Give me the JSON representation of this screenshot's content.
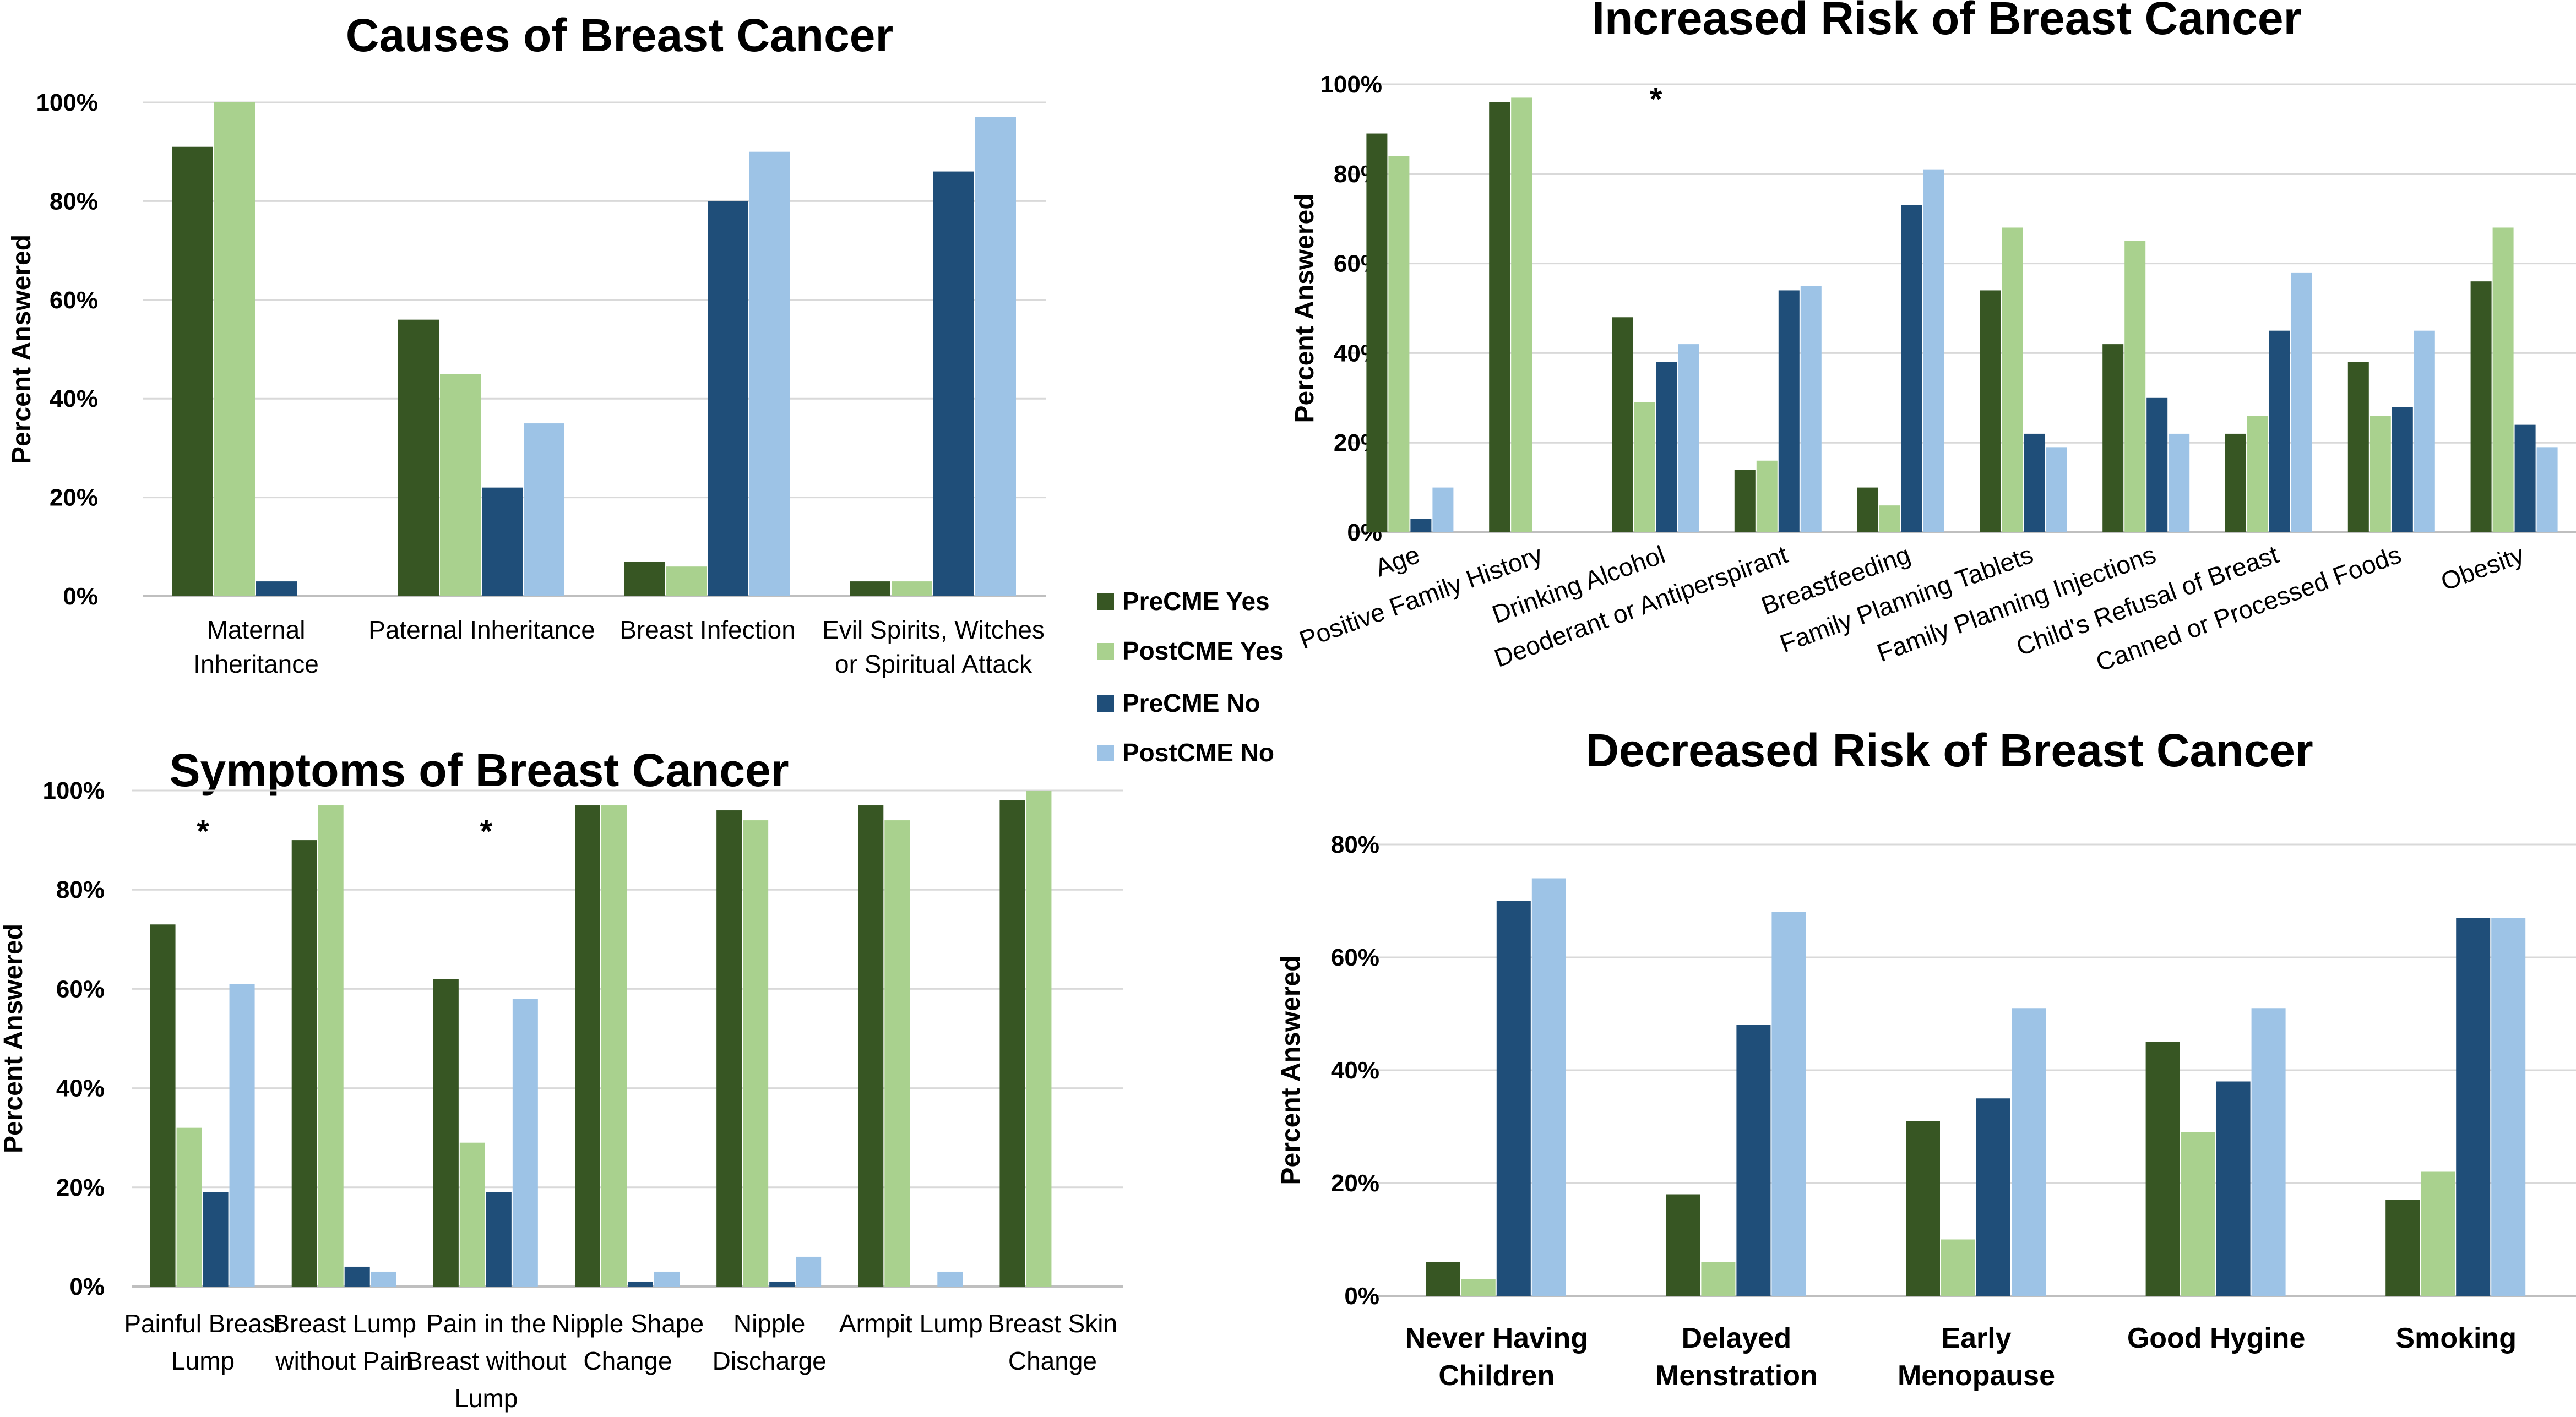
{
  "series_colors": {
    "PreCME Yes": "#375623",
    "PostCME Yes": "#A9D18E",
    "PreCME No": "#1F4E79",
    "PostCME No": "#9DC3E6"
  },
  "legend": [
    "PreCME Yes",
    "PostCME Yes",
    "PreCME No",
    "PostCME No"
  ],
  "chart_data": [
    {
      "id": "causes",
      "type": "bar",
      "title": "Causes of Breast Cancer",
      "ylabel": "Percent Answered",
      "ylim": [
        0,
        100
      ],
      "yticks": [
        "0%",
        "20%",
        "40%",
        "60%",
        "80%",
        "100%"
      ],
      "categories": [
        [
          "Maternal",
          "Inheritance"
        ],
        [
          "Paternal Inheritance"
        ],
        [
          "Breast Infection"
        ],
        [
          "Evil Spirits, Witches",
          "or Spiritual Attack"
        ]
      ],
      "series": [
        {
          "name": "PreCME Yes",
          "values": [
            91,
            56,
            7,
            3
          ]
        },
        {
          "name": "PostCME Yes",
          "values": [
            100,
            45,
            6,
            3
          ]
        },
        {
          "name": "PreCME No",
          "values": [
            3,
            22,
            80,
            86
          ]
        },
        {
          "name": "PostCME No",
          "values": [
            0,
            35,
            90,
            97
          ]
        }
      ],
      "annotations": []
    },
    {
      "id": "increased",
      "type": "bar",
      "title": "Increased Risk of Breast Cancer",
      "ylabel": "Percent Answered",
      "ylim": [
        0,
        100
      ],
      "yticks": [
        "0%",
        "20%",
        "40%",
        "60%",
        "80%",
        "100%"
      ],
      "categories": [
        "Age",
        "Positive Family History",
        "Drinking Alcohol",
        "Deoderant or Antiperspirant",
        "Breastfeeding",
        "Family Planning Tablets",
        "Family Planning Injections",
        "Child's Refusal of Breast",
        "Canned or Processed Foods",
        "Obesity"
      ],
      "series": [
        {
          "name": "PreCME Yes",
          "values": [
            89,
            96,
            48,
            14,
            10,
            54,
            42,
            22,
            38,
            56
          ]
        },
        {
          "name": "PostCME Yes",
          "values": [
            84,
            97,
            29,
            16,
            6,
            68,
            65,
            26,
            26,
            68
          ]
        },
        {
          "name": "PreCME No",
          "values": [
            3,
            0,
            38,
            54,
            73,
            22,
            30,
            45,
            28,
            24
          ]
        },
        {
          "name": "PostCME No",
          "values": [
            10,
            0,
            42,
            55,
            81,
            19,
            22,
            58,
            45,
            19
          ]
        }
      ],
      "annotations": [
        {
          "category": 2,
          "text": "*"
        }
      ]
    },
    {
      "id": "symptoms",
      "type": "bar",
      "title": "Symptoms of Breast Cancer",
      "ylabel": "Percent Answered",
      "ylim": [
        0,
        100
      ],
      "yticks": [
        "0%",
        "20%",
        "40%",
        "60%",
        "80%",
        "100%"
      ],
      "categories": [
        [
          "Painful Breast",
          "Lump"
        ],
        [
          "Breast Lump",
          "without Pain"
        ],
        [
          "Pain in the",
          "Breast without",
          "Lump"
        ],
        [
          "Nipple Shape",
          "Change"
        ],
        [
          "Nipple",
          "Discharge"
        ],
        [
          "Armpit Lump"
        ],
        [
          "Breast Skin",
          "Change"
        ]
      ],
      "series": [
        {
          "name": "PreCME Yes",
          "values": [
            73,
            90,
            62,
            97,
            96,
            97,
            98
          ]
        },
        {
          "name": "PostCME Yes",
          "values": [
            32,
            97,
            29,
            97,
            94,
            94,
            100
          ]
        },
        {
          "name": "PreCME No",
          "values": [
            19,
            4,
            19,
            1,
            1,
            0,
            0
          ]
        },
        {
          "name": "PostCME No",
          "values": [
            61,
            3,
            58,
            3,
            6,
            3,
            0
          ]
        }
      ],
      "annotations": [
        {
          "category": 0,
          "text": "*"
        },
        {
          "category": 2,
          "text": "*"
        }
      ]
    },
    {
      "id": "decreased",
      "type": "bar",
      "title": "Decreased Risk of Breast Cancer",
      "ylabel": "Percent Answered",
      "ylim": [
        0,
        80
      ],
      "yticks": [
        "0%",
        "20%",
        "40%",
        "60%",
        "80%"
      ],
      "categories": [
        [
          "Never Having",
          "Children"
        ],
        [
          "Delayed",
          "Menstration"
        ],
        [
          "Early",
          "Menopause"
        ],
        [
          "Good Hygine"
        ],
        [
          "Smoking"
        ]
      ],
      "series": [
        {
          "name": "PreCME Yes",
          "values": [
            6,
            18,
            31,
            45,
            17
          ]
        },
        {
          "name": "PostCME Yes",
          "values": [
            3,
            6,
            10,
            29,
            22
          ]
        },
        {
          "name": "PreCME No",
          "values": [
            70,
            48,
            35,
            38,
            67
          ]
        },
        {
          "name": "PostCME No",
          "values": [
            74,
            68,
            51,
            51,
            67
          ]
        }
      ],
      "annotations": []
    }
  ]
}
